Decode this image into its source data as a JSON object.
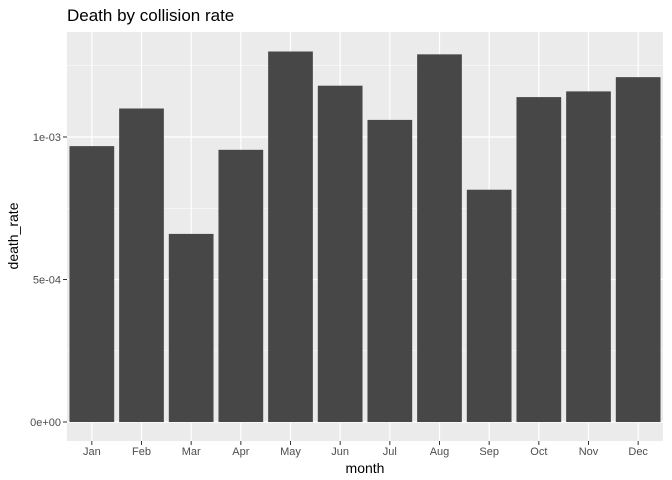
{
  "chart_data": {
    "type": "bar",
    "title": "Death by collision rate",
    "xlabel": "month",
    "ylabel": "death_rate",
    "categories": [
      "Jan",
      "Feb",
      "Mar",
      "Apr",
      "May",
      "Jun",
      "Jul",
      "Aug",
      "Sep",
      "Oct",
      "Nov",
      "Dec"
    ],
    "values": [
      0.000968,
      0.0011,
      0.00066,
      0.000955,
      0.0013,
      0.00118,
      0.00106,
      0.00129,
      0.000815,
      0.00114,
      0.00116,
      0.00121
    ],
    "ylim": [
      0,
      0.001355
    ],
    "yticks": [
      0,
      0.0005,
      0.001
    ],
    "ytick_labels": [
      "0e+00",
      "5e-04",
      "1e-03"
    ],
    "grid": true,
    "colors": {
      "panel": "#ebebeb",
      "grid": "#ffffff",
      "bar": "#474747",
      "tick": "#333333"
    }
  }
}
